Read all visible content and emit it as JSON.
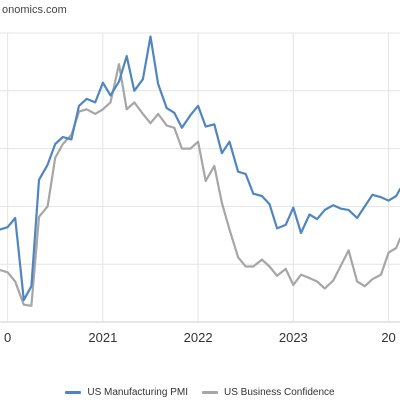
{
  "source_text": "onomics.com",
  "colors": {
    "pmi": "#4f86c0",
    "confidence": "#a6a6a6",
    "grid": "#e4e4e4",
    "axis": "#cccccc"
  },
  "legend": [
    {
      "label": "US Manufacturing PMI",
      "color": "#4f86c0"
    },
    {
      "label": "US Business Confidence",
      "color": "#a6a6a6"
    }
  ],
  "chart_data": {
    "type": "line",
    "title": "",
    "xlabel": "",
    "ylabel": "",
    "x_tick_labels": [
      "0",
      "2021",
      "2022",
      "2023",
      "20"
    ],
    "xlim": [
      2019.92,
      2024.12
    ],
    "ylim": [
      40,
      65
    ],
    "grid": true,
    "legend_position": "bottom",
    "series": [
      {
        "name": "US Manufacturing PMI",
        "color": "#4f86c0",
        "x": [
          2019.92,
          2020.0,
          2020.08,
          2020.17,
          2020.25,
          2020.33,
          2020.42,
          2020.5,
          2020.58,
          2020.67,
          2020.75,
          2020.83,
          2020.92,
          2021.0,
          2021.08,
          2021.17,
          2021.25,
          2021.33,
          2021.42,
          2021.5,
          2021.58,
          2021.67,
          2021.75,
          2021.83,
          2021.92,
          2022.0,
          2022.08,
          2022.17,
          2022.25,
          2022.33,
          2022.42,
          2022.5,
          2022.58,
          2022.67,
          2022.75,
          2022.83,
          2022.92,
          2023.0,
          2023.08,
          2023.17,
          2023.25,
          2023.33,
          2023.42,
          2023.5,
          2023.58,
          2023.67,
          2023.75,
          2023.83,
          2023.92,
          2024.0,
          2024.08,
          2024.12
        ],
        "values": [
          48,
          48.2,
          49.0,
          41.9,
          43.1,
          52.3,
          53.6,
          55.4,
          56.0,
          55.8,
          58.7,
          59.3,
          59.0,
          60.7,
          59.6,
          60.8,
          63.0,
          60.0,
          61.0,
          64.7,
          60.6,
          58.5,
          58.1,
          56.8,
          57.9,
          58.7,
          56.9,
          57.1,
          54.6,
          55.6,
          53.0,
          52.8,
          51.1,
          50.9,
          50.2,
          48.1,
          48.4,
          49.9,
          47.7,
          49.3,
          48.9,
          49.7,
          50.1,
          49.8,
          49.7,
          49.0,
          50.0,
          51.0,
          50.8,
          50.5,
          50.9,
          51.5
        ]
      },
      {
        "name": "US Business Confidence",
        "color": "#a6a6a6",
        "x": [
          2019.92,
          2020.0,
          2020.08,
          2020.17,
          2020.25,
          2020.33,
          2020.42,
          2020.5,
          2020.58,
          2020.67,
          2020.75,
          2020.83,
          2020.92,
          2021.0,
          2021.08,
          2021.17,
          2021.25,
          2021.33,
          2021.42,
          2021.5,
          2021.58,
          2021.67,
          2021.75,
          2021.83,
          2021.92,
          2022.0,
          2022.08,
          2022.17,
          2022.25,
          2022.33,
          2022.42,
          2022.5,
          2022.58,
          2022.67,
          2022.75,
          2022.83,
          2022.92,
          2023.0,
          2023.08,
          2023.17,
          2023.25,
          2023.33,
          2023.42,
          2023.5,
          2023.58,
          2023.67,
          2023.75,
          2023.83,
          2023.92,
          2024.0,
          2024.08,
          2024.12
        ],
        "values": [
          44.5,
          44.3,
          43.5,
          41.5,
          41.4,
          49.1,
          50.0,
          54.2,
          55.4,
          56.2,
          58.2,
          58.4,
          58.0,
          58.4,
          59.0,
          62.3,
          58.4,
          59.0,
          58.0,
          57.2,
          58.0,
          57.0,
          56.8,
          55.0,
          55.0,
          55.6,
          52.2,
          53.5,
          50.3,
          48.0,
          45.6,
          44.8,
          44.8,
          45.4,
          44.8,
          44.0,
          44.6,
          43.2,
          44.1,
          43.8,
          43.5,
          42.9,
          43.6,
          44.9,
          46.2,
          43.5,
          43.1,
          43.7,
          44.1,
          46.0,
          46.4,
          47.2
        ]
      }
    ]
  }
}
